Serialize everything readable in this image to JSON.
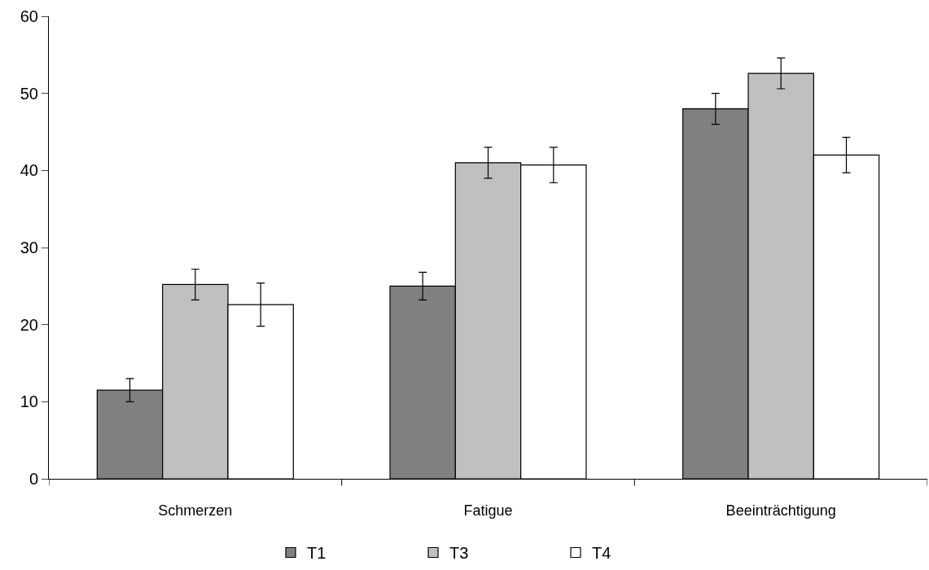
{
  "chart_data": {
    "type": "bar",
    "categories": [
      "Schmerzen",
      "Fatigue",
      "Beeinträchtigung"
    ],
    "series": [
      {
        "name": "T1",
        "color": "#808080",
        "values": [
          11.5,
          25.0,
          48.0
        ],
        "errors": [
          1.5,
          1.8,
          2.0
        ]
      },
      {
        "name": "T3",
        "color": "#c0c0c0",
        "values": [
          25.2,
          41.0,
          52.6
        ],
        "errors": [
          2.0,
          2.0,
          2.0
        ]
      },
      {
        "name": "T4",
        "color": "#ffffff",
        "values": [
          22.6,
          40.7,
          42.0
        ],
        "errors": [
          2.8,
          2.3,
          2.3
        ]
      }
    ],
    "ylim": [
      0,
      60
    ],
    "yticks": [
      0,
      10,
      20,
      30,
      40,
      50,
      60
    ],
    "legend": "bottom"
  }
}
